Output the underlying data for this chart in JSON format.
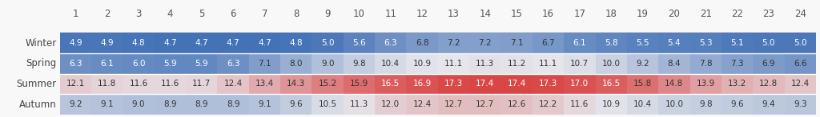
{
  "seasons": [
    "Winter",
    "Spring",
    "Summer",
    "Autumn"
  ],
  "hours": [
    1,
    2,
    3,
    4,
    5,
    6,
    7,
    8,
    9,
    10,
    11,
    12,
    13,
    14,
    15,
    16,
    17,
    18,
    19,
    20,
    21,
    22,
    23,
    24
  ],
  "values": {
    "Winter": [
      4.9,
      4.9,
      4.8,
      4.7,
      4.7,
      4.7,
      4.7,
      4.8,
      5.0,
      5.6,
      6.3,
      6.8,
      7.2,
      7.2,
      7.1,
      6.7,
      6.1,
      5.8,
      5.5,
      5.4,
      5.3,
      5.1,
      5.0,
      5.0
    ],
    "Spring": [
      6.3,
      6.1,
      6.0,
      5.9,
      5.9,
      6.3,
      7.1,
      8.0,
      9.0,
      9.8,
      10.4,
      10.9,
      11.1,
      11.3,
      11.2,
      11.1,
      10.7,
      10.0,
      9.2,
      8.4,
      7.8,
      7.3,
      6.9,
      6.6
    ],
    "Summer": [
      12.1,
      11.8,
      11.6,
      11.6,
      11.7,
      12.4,
      13.4,
      14.3,
      15.2,
      15.9,
      16.5,
      16.9,
      17.3,
      17.4,
      17.4,
      17.3,
      17.0,
      16.5,
      15.8,
      14.8,
      13.9,
      13.2,
      12.8,
      12.4
    ],
    "Autumn": [
      9.2,
      9.1,
      9.0,
      8.9,
      8.9,
      8.9,
      9.1,
      9.6,
      10.5,
      11.3,
      12.0,
      12.4,
      12.7,
      12.7,
      12.6,
      12.2,
      11.6,
      10.9,
      10.4,
      10.0,
      9.8,
      9.6,
      9.4,
      9.3
    ]
  },
  "vmin": 4.7,
  "vmax": 17.4,
  "background_color": "#f8f8f8",
  "header_color": "#555555",
  "row_label_color": "#444444",
  "font_size_data": 7.5,
  "font_size_header": 8.5,
  "font_size_row": 8.5,
  "cmap_low": "#3d6eb4",
  "cmap_mid": "#f0f0f0",
  "cmap_high": "#d94040"
}
